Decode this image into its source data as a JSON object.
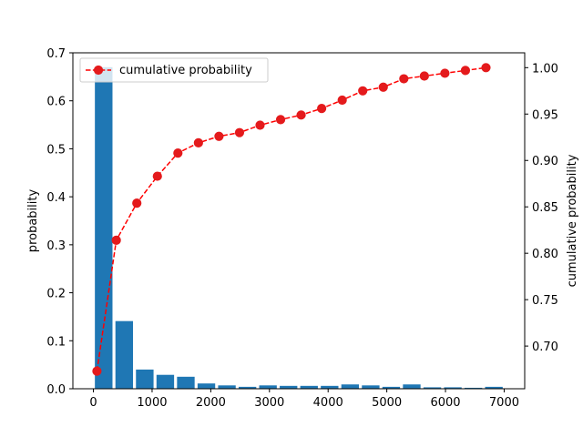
{
  "chart_data": {
    "type": "bar+line",
    "x_axis": {
      "ticks": [
        0,
        1000,
        2000,
        3000,
        4000,
        5000,
        6000,
        7000
      ],
      "tick_labels": [
        "0",
        "1000",
        "2000",
        "3000",
        "4000",
        "5000",
        "6000",
        "7000"
      ],
      "range": [
        -350,
        7350
      ]
    },
    "y_left": {
      "label": "probability",
      "range": [
        0,
        0.7
      ],
      "ticks": [
        0.0,
        0.1,
        0.2,
        0.3,
        0.4,
        0.5,
        0.6,
        0.7
      ],
      "tick_labels": [
        "0.0",
        "0.1",
        "0.2",
        "0.3",
        "0.4",
        "0.5",
        "0.6",
        "0.7"
      ]
    },
    "y_right": {
      "label": "cumulative probability",
      "range": [
        0.654,
        1.016
      ],
      "ticks": [
        0.7,
        0.75,
        0.8,
        0.85,
        0.9,
        0.95,
        1.0
      ],
      "tick_labels": [
        "0.70",
        "0.75",
        "0.80",
        "0.85",
        "0.90",
        "0.95",
        "1.00"
      ]
    },
    "bar_width": 300,
    "bars": [
      {
        "x": 175,
        "value": 0.67
      },
      {
        "x": 525,
        "value": 0.141
      },
      {
        "x": 875,
        "value": 0.04
      },
      {
        "x": 1225,
        "value": 0.029
      },
      {
        "x": 1575,
        "value": 0.025
      },
      {
        "x": 1925,
        "value": 0.011
      },
      {
        "x": 2275,
        "value": 0.007
      },
      {
        "x": 2625,
        "value": 0.004
      },
      {
        "x": 2975,
        "value": 0.007
      },
      {
        "x": 3325,
        "value": 0.006
      },
      {
        "x": 3675,
        "value": 0.006
      },
      {
        "x": 4025,
        "value": 0.006
      },
      {
        "x": 4375,
        "value": 0.009
      },
      {
        "x": 4725,
        "value": 0.007
      },
      {
        "x": 5075,
        "value": 0.004
      },
      {
        "x": 5425,
        "value": 0.009
      },
      {
        "x": 5775,
        "value": 0.003
      },
      {
        "x": 6125,
        "value": 0.003
      },
      {
        "x": 6475,
        "value": 0.002
      },
      {
        "x": 6825,
        "value": 0.004
      }
    ],
    "line_series": {
      "name": "cumulative probability",
      "style": "dashed",
      "marker": "circle",
      "points": [
        {
          "x": 60,
          "y": 0.673
        },
        {
          "x": 390,
          "y": 0.814
        },
        {
          "x": 740,
          "y": 0.854
        },
        {
          "x": 1090,
          "y": 0.883
        },
        {
          "x": 1440,
          "y": 0.908
        },
        {
          "x": 1790,
          "y": 0.919
        },
        {
          "x": 2140,
          "y": 0.926
        },
        {
          "x": 2490,
          "y": 0.93
        },
        {
          "x": 2840,
          "y": 0.938
        },
        {
          "x": 3190,
          "y": 0.944
        },
        {
          "x": 3540,
          "y": 0.949
        },
        {
          "x": 3890,
          "y": 0.956
        },
        {
          "x": 4240,
          "y": 0.965
        },
        {
          "x": 4590,
          "y": 0.975
        },
        {
          "x": 4940,
          "y": 0.979
        },
        {
          "x": 5290,
          "y": 0.988
        },
        {
          "x": 5640,
          "y": 0.991
        },
        {
          "x": 5990,
          "y": 0.994
        },
        {
          "x": 6340,
          "y": 0.997
        },
        {
          "x": 6690,
          "y": 1.0
        }
      ]
    },
    "legend": {
      "position": "upper-left",
      "entries": [
        "cumulative probability"
      ]
    },
    "grid": false,
    "colors": {
      "bar": "#1f77b4",
      "line": "#ff0000",
      "marker": "#e41a1c",
      "axes": "#000000"
    }
  }
}
